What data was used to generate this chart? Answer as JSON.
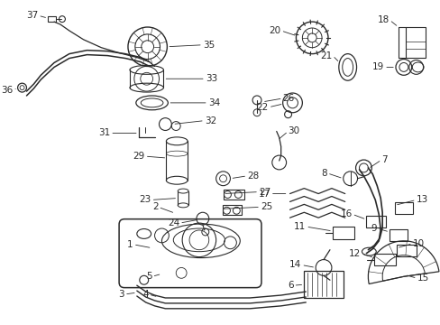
{
  "bg_color": "#ffffff",
  "line_color": "#2a2a2a",
  "fig_width": 4.89,
  "fig_height": 3.6,
  "dpi": 100,
  "label_fontsize": 7.5,
  "label_fontweight": "normal"
}
